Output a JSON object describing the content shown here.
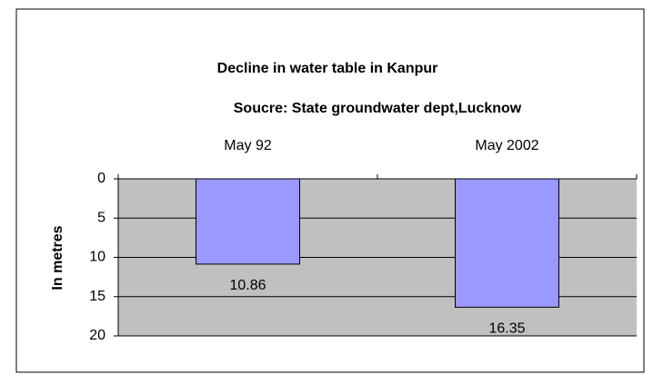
{
  "chart_data": {
    "type": "bar",
    "title": "Decline in water table in Kanpur",
    "subtitle": "Soucre: State groundwater dept,Lucknow",
    "y_label": "In metres",
    "categories": [
      "May 92",
      "May 2002"
    ],
    "values": [
      10.86,
      16.35
    ],
    "color": "#9999ff",
    "ylim": [
      0,
      20
    ],
    "yticks": [
      0,
      5,
      10,
      15,
      20
    ],
    "y_inverted": true,
    "grid": true,
    "show_value_labels": true
  }
}
